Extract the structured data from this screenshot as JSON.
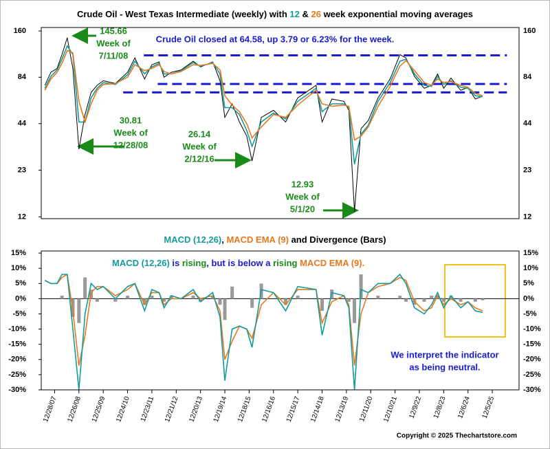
{
  "chart_data": [
    {
      "type": "line",
      "title": [
        {
          "text": "Crude Oil - West Texas Intermediate (weekly) with ",
          "color": "#000000"
        },
        {
          "text": "12",
          "color": "#139a9a"
        },
        {
          "text": " & ",
          "color": "#000000"
        },
        {
          "text": "26",
          "color": "#e8781e"
        },
        {
          "text": " week exponential moving averages",
          "color": "#000000"
        }
      ],
      "note": "Crude Oil closed at 64.58, up 3.79 or 6.23% for the week.",
      "note_color": "#1a1ad0",
      "annotations": [
        {
          "lines": [
            "145.66",
            "Week of",
            "7/11/08"
          ],
          "color": "#1a8a1a"
        },
        {
          "lines": [
            "30.81",
            "Week of",
            "12/28/08"
          ],
          "color": "#1a8a1a"
        },
        {
          "lines": [
            "26.14",
            "Week of",
            "2/12/16"
          ],
          "color": "#1a8a1a"
        },
        {
          "lines": [
            "12.93",
            "Week of",
            "5/1/20"
          ],
          "color": "#1a8a1a"
        }
      ],
      "log_scale": true,
      "xlim": [
        2007.45,
        2027.1
      ],
      "ylim": [
        11.7,
        168
      ],
      "yticks": [
        12,
        23,
        44,
        84,
        160
      ],
      "hlines": [
        {
          "y": 114,
          "x1": 2011.67,
          "x2": 2026.6
        },
        {
          "y": 76.5,
          "x1": 2012.24,
          "x2": 2026.6
        },
        {
          "y": 68,
          "x1": 2010.82,
          "x2": 2026.6
        }
      ],
      "hline_color": "#1a1ad0",
      "x": [
        2007.6,
        2007.85,
        2008.1,
        2008.3,
        2008.52,
        2008.75,
        2009.0,
        2009.25,
        2009.5,
        2009.75,
        2010.0,
        2010.5,
        2011.0,
        2011.3,
        2011.7,
        2012.0,
        2012.3,
        2012.5,
        2012.8,
        2013.2,
        2013.7,
        2014.0,
        2014.5,
        2014.8,
        2015.0,
        2015.3,
        2015.6,
        2015.9,
        2016.12,
        2016.5,
        2017.0,
        2017.5,
        2018.0,
        2018.75,
        2019.0,
        2019.4,
        2019.9,
        2020.1,
        2020.33,
        2020.6,
        2020.9,
        2021.3,
        2021.8,
        2022.2,
        2022.45,
        2022.8,
        2023.2,
        2023.5,
        2023.75,
        2024.0,
        2024.3,
        2024.7,
        2025.0,
        2025.3,
        2025.6
      ],
      "series": [
        {
          "color": "#000000",
          "width": 1,
          "values": [
            75,
            90,
            95,
            115,
            145.66,
            95,
            30.81,
            50,
            68,
            75,
            80,
            77,
            90,
            110,
            82,
            100,
            104,
            84,
            90,
            93,
            105,
            97,
            104,
            80,
            48,
            58,
            45,
            37,
            26.14,
            48,
            53,
            45,
            63,
            75,
            45,
            62,
            60,
            53,
            12.93,
            41,
            46,
            63,
            82,
            115,
            110,
            85,
            72,
            75,
            88,
            72,
            83,
            70,
            73,
            62,
            64.58
          ]
        },
        {
          "color": "#139a9a",
          "width": 1.6,
          "values": [
            72,
            85,
            93,
            108,
            130,
            115,
            45,
            45,
            63,
            72,
            78,
            76,
            87,
            105,
            88,
            97,
            102,
            88,
            88,
            92,
            103,
            98,
            103,
            88,
            55,
            55,
            50,
            40,
            32,
            45,
            51,
            47,
            60,
            72,
            52,
            58,
            58,
            55,
            25,
            38,
            43,
            60,
            78,
            105,
            108,
            88,
            75,
            74,
            85,
            76,
            80,
            73,
            72,
            65,
            64
          ]
        },
        {
          "color": "#e8781e",
          "width": 1.6,
          "values": [
            70,
            82,
            90,
            102,
            122,
            118,
            60,
            45,
            58,
            70,
            76,
            77,
            84,
            100,
            92,
            95,
            100,
            91,
            88,
            91,
            100,
            99,
            102,
            93,
            65,
            57,
            52,
            44,
            36,
            42,
            50,
            48,
            57,
            70,
            58,
            56,
            57,
            56,
            35,
            37,
            42,
            56,
            74,
            98,
            106,
            92,
            78,
            75,
            82,
            78,
            79,
            75,
            73,
            67,
            65
          ]
        }
      ]
    },
    {
      "type": "line",
      "title": [
        {
          "text": "MACD (12,26)",
          "color": "#139a9a"
        },
        {
          "text": ", ",
          "color": "#000000"
        },
        {
          "text": "MACD EMA (9)",
          "color": "#e8781e"
        },
        {
          "text": " and Divergence (Bars)",
          "color": "#000000"
        }
      ],
      "note_parts": [
        {
          "text": "MACD (12,26)",
          "color": "#139a9a"
        },
        {
          "text": " is ",
          "color": "#1a1ad0"
        },
        {
          "text": "rising",
          "color": "#1a8a1a"
        },
        {
          "text": ", but is below a ",
          "color": "#1a1ad0"
        },
        {
          "text": "rising",
          "color": "#1a8a1a"
        },
        {
          "text": " MACD EMA (9).",
          "color": "#e8781e"
        }
      ],
      "conclusion": [
        "We interpret the indicator",
        "as being neutral."
      ],
      "conclusion_color": "#1a1ad0",
      "zero_line": true,
      "xlim": [
        2007.45,
        2027.1
      ],
      "ylim": [
        -30,
        15.7
      ],
      "yticks": [
        {
          "value": -30,
          "label": "-30%"
        },
        {
          "value": -25,
          "label": "-25%"
        },
        {
          "value": -20,
          "label": "-20%"
        },
        {
          "value": -15,
          "label": "-15%"
        },
        {
          "value": -10,
          "label": "-10%"
        },
        {
          "value": -5,
          "label": "-5%"
        },
        {
          "value": 0,
          "label": "0%"
        },
        {
          "value": 5,
          "label": "5%"
        },
        {
          "value": 10,
          "label": "10%"
        },
        {
          "value": 15,
          "label": "15%"
        }
      ],
      "xticks": [
        {
          "value": 2008,
          "label": "12/28/07"
        },
        {
          "value": 2009,
          "label": "12/26/08"
        },
        {
          "value": 2010,
          "label": "12/25/09"
        },
        {
          "value": 2011,
          "label": "12/24/10"
        },
        {
          "value": 2012,
          "label": "12/23/11"
        },
        {
          "value": 2013,
          "label": "12/21/12"
        },
        {
          "value": 2014,
          "label": "12/20/13"
        },
        {
          "value": 2015,
          "label": "12/19/14"
        },
        {
          "value": 2016,
          "label": "12/18/15"
        },
        {
          "value": 2017,
          "label": "12/16/16"
        },
        {
          "value": 2018,
          "label": "12/15/17"
        },
        {
          "value": 2019,
          "label": "12/14/18"
        },
        {
          "value": 2020,
          "label": "12/13/19"
        },
        {
          "value": 2021,
          "label": "12/11/20"
        },
        {
          "value": 2022,
          "label": "12/10/21"
        },
        {
          "value": 2023,
          "label": "12/9/22"
        },
        {
          "value": 2024,
          "label": "12/8/23"
        },
        {
          "value": 2025,
          "label": "12/6/24"
        },
        {
          "value": 2026,
          "label": "12/5/25"
        }
      ],
      "x": [
        2007.6,
        2007.85,
        2008.1,
        2008.3,
        2008.52,
        2008.75,
        2009.0,
        2009.25,
        2009.5,
        2009.75,
        2010.0,
        2010.5,
        2011.0,
        2011.3,
        2011.7,
        2012.0,
        2012.3,
        2012.5,
        2012.8,
        2013.2,
        2013.7,
        2014.0,
        2014.5,
        2014.8,
        2015.0,
        2015.3,
        2015.6,
        2015.9,
        2016.12,
        2016.5,
        2017.0,
        2017.5,
        2018.0,
        2018.75,
        2019.0,
        2019.4,
        2019.9,
        2020.1,
        2020.33,
        2020.6,
        2020.9,
        2021.3,
        2021.8,
        2022.2,
        2022.45,
        2022.8,
        2023.2,
        2023.5,
        2023.75,
        2024.0,
        2024.3,
        2024.7,
        2025.0,
        2025.3,
        2025.6
      ],
      "series": [
        {
          "type": "bar",
          "color": "#9a9a9a",
          "values": [
            0,
            0,
            0,
            1,
            0,
            -6,
            -8,
            7,
            3,
            -1,
            0,
            -1,
            1,
            0,
            -2,
            1,
            0,
            -1,
            1,
            0,
            1,
            -1,
            1,
            -2,
            -7,
            4,
            0,
            0,
            -3,
            5,
            0,
            -2,
            1,
            0,
            -4,
            3,
            0,
            -1,
            -8,
            8,
            0,
            1,
            0,
            1,
            -1,
            -2,
            -1,
            1,
            1,
            -1,
            1,
            -1,
            0,
            -1,
            -0.5
          ]
        },
        {
          "type": "line",
          "color": "#e8781e",
          "width": 1.6,
          "values": [
            6,
            5,
            5,
            7,
            8,
            -4,
            -22,
            -12,
            2,
            4,
            4,
            1,
            3,
            5,
            -2,
            2,
            2,
            -2,
            0,
            0,
            2,
            0,
            1,
            -4,
            -20,
            -14,
            -9,
            -10,
            -13,
            -2,
            2,
            -2,
            3,
            3,
            -8,
            -1,
            1,
            -2,
            -22,
            -5,
            2,
            4,
            5,
            7,
            6,
            -1,
            -4,
            -3,
            1,
            -2,
            0,
            -2,
            -1,
            -3,
            -4
          ]
        },
        {
          "type": "line",
          "color": "#139a9a",
          "width": 1.6,
          "values": [
            6,
            5,
            5,
            8,
            8,
            -10,
            -30,
            -5,
            5,
            3,
            4,
            0,
            4,
            5,
            -4,
            3,
            2,
            -3,
            1,
            0,
            3,
            -1,
            2,
            -6,
            -27,
            -10,
            -9,
            -10,
            -16,
            3,
            2,
            -4,
            4,
            3,
            -12,
            2,
            1,
            -3,
            -30,
            3,
            2,
            5,
            5,
            8,
            5,
            -3,
            -5,
            -2,
            2,
            -3,
            1,
            -3,
            -1,
            -4,
            -4.5
          ]
        }
      ]
    }
  ],
  "copyright": "Copyright © 2025 Thechartstore.com"
}
